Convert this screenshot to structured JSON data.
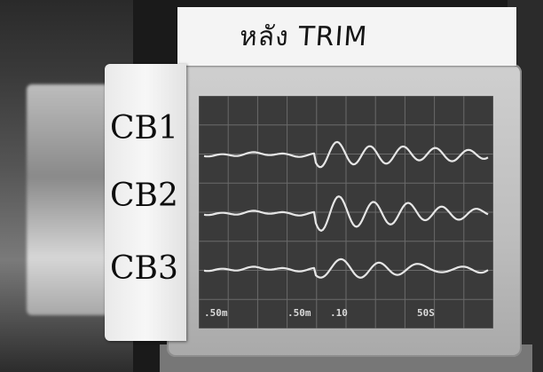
{
  "title": "หลัง TRIM",
  "channels": [
    {
      "label": "CB1"
    },
    {
      "label": "CB2"
    },
    {
      "label": "CB3"
    }
  ],
  "readouts": {
    "ch1_scale": ".50m",
    "ch2_scale": ".50m",
    "ch3_scale": ".10",
    "timebase": "50S"
  },
  "colors": {
    "trace": "#e6e6e6",
    "screen": "#3a3a3a",
    "grid": "#6a6a6a",
    "label_paper": "#f4f4f4"
  }
}
